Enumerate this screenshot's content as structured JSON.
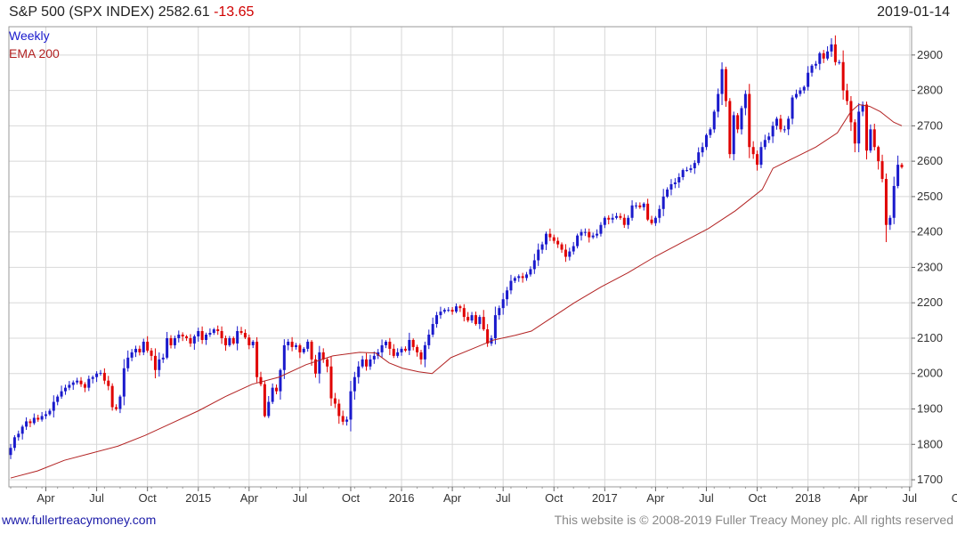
{
  "header": {
    "title": "S&P 500 (SPX INDEX)",
    "last": "2582.61",
    "change": "-13.65",
    "date": "2019-01-14"
  },
  "legend": [
    {
      "label": "Weekly",
      "color": "#1a1acc"
    },
    {
      "label": "EMA 200",
      "color": "#b22222"
    }
  ],
  "footer": {
    "link_text": "www.fullertreacymoney.com",
    "copyright": "This website is © 2008-2019 Fuller Treacy Money plc. All rights reserved"
  },
  "colors": {
    "up_bar": "#1a1acc",
    "down_bar": "#e00000",
    "ema_line": "#b22222",
    "grid": "#d8d8d8"
  },
  "chart_data": {
    "type": "line",
    "title": "S&P 500 (SPX INDEX)",
    "frequency": "Weekly",
    "ylim": [
      1680,
      2980
    ],
    "y_ticks": [
      1700,
      1800,
      1900,
      2000,
      2100,
      2200,
      2300,
      2400,
      2500,
      2600,
      2700,
      2800,
      2900
    ],
    "x_ticks": [
      "Apr",
      "Jul",
      "Oct",
      "2015",
      "Apr",
      "Jul",
      "Oct",
      "2016",
      "Apr",
      "Jul",
      "Oct",
      "2017",
      "Apr",
      "Jul",
      "Oct",
      "2018",
      "Apr",
      "Jul",
      "Oct"
    ],
    "grid": true,
    "legend_position": "top-left",
    "series": [
      {
        "name": "Weekly",
        "kind": "close",
        "values": [
          1790,
          1820,
          1830,
          1850,
          1865,
          1860,
          1875,
          1870,
          1880,
          1885,
          1895,
          1920,
          1935,
          1950,
          1960,
          1968,
          1975,
          1980,
          1970,
          1960,
          1985,
          1990,
          2000,
          2002,
          1980,
          1965,
          1905,
          1900,
          1935,
          2015,
          2045,
          2060,
          2070,
          2060,
          2090,
          2065,
          2050,
          2010,
          2040,
          2045,
          2100,
          2080,
          2100,
          2110,
          2105,
          2100,
          2085,
          2105,
          2120,
          2095,
          2110,
          2115,
          2125,
          2120,
          2100,
          2080,
          2100,
          2085,
          2120,
          2115,
          2102,
          2080,
          2090,
          1990,
          1970,
          1880,
          1920,
          1960,
          1950,
          2010,
          2080,
          2090,
          2075,
          2080,
          2060,
          2070,
          2090,
          2040,
          2000,
          2060,
          2040,
          2020,
          1930,
          1915,
          1880,
          1864,
          1870,
          1950,
          1990,
          2020,
          2040,
          2020,
          2040,
          2050,
          2060,
          2080,
          2090,
          2070,
          2050,
          2060,
          2070,
          2065,
          2095,
          2075,
          2060,
          2040,
          2080,
          2110,
          2140,
          2165,
          2175,
          2180,
          2180,
          2175,
          2190,
          2185,
          2160,
          2150,
          2165,
          2140,
          2160,
          2125,
          2085,
          2100,
          2165,
          2185,
          2210,
          2235,
          2262,
          2270,
          2275,
          2270,
          2280,
          2295,
          2320,
          2350,
          2365,
          2395,
          2385,
          2375,
          2365,
          2350,
          2330,
          2345,
          2360,
          2390,
          2400,
          2400,
          2385,
          2390,
          2395,
          2420,
          2440,
          2435,
          2440,
          2445,
          2440,
          2420,
          2440,
          2475,
          2475,
          2470,
          2480,
          2435,
          2425,
          2440,
          2465,
          2500,
          2520,
          2535,
          2540,
          2555,
          2575,
          2575,
          2580,
          2595,
          2625,
          2640,
          2674,
          2690,
          2740,
          2790,
          2860,
          2770,
          2620,
          2730,
          2690,
          2750,
          2790,
          2640,
          2620,
          2590,
          2640,
          2660,
          2670,
          2700,
          2720,
          2690,
          2690,
          2720,
          2780,
          2790,
          2800,
          2810,
          2850,
          2870,
          2875,
          2905,
          2890,
          2910,
          2930,
          2880,
          2880,
          2800,
          2770,
          2710,
          2650,
          2740,
          2760,
          2630,
          2690,
          2640,
          2600,
          2550,
          2420,
          2440,
          2530,
          2590,
          2583
        ]
      },
      {
        "name": "EMA 200",
        "kind": "line",
        "points": [
          [
            0,
            1705
          ],
          [
            20,
            1725
          ],
          [
            40,
            1755
          ],
          [
            60,
            1775
          ],
          [
            80,
            1795
          ],
          [
            100,
            1825
          ],
          [
            120,
            1860
          ],
          [
            140,
            1895
          ],
          [
            160,
            1935
          ],
          [
            180,
            1970
          ],
          [
            200,
            1990
          ],
          [
            220,
            2025
          ],
          [
            240,
            2050
          ],
          [
            260,
            2060
          ],
          [
            272,
            2058
          ],
          [
            282,
            2030
          ],
          [
            292,
            2015
          ],
          [
            304,
            2005
          ],
          [
            314,
            2000
          ],
          [
            328,
            2045
          ],
          [
            344,
            2070
          ],
          [
            360,
            2095
          ],
          [
            376,
            2108
          ],
          [
            388,
            2120
          ],
          [
            400,
            2150
          ],
          [
            420,
            2200
          ],
          [
            440,
            2245
          ],
          [
            460,
            2285
          ],
          [
            480,
            2330
          ],
          [
            500,
            2370
          ],
          [
            520,
            2410
          ],
          [
            540,
            2460
          ],
          [
            560,
            2520
          ],
          [
            568,
            2580
          ],
          [
            584,
            2610
          ],
          [
            600,
            2640
          ],
          [
            616,
            2680
          ],
          [
            626,
            2740
          ],
          [
            632,
            2760
          ],
          [
            640,
            2755
          ],
          [
            648,
            2740
          ],
          [
            658,
            2710
          ],
          [
            664,
            2700
          ]
        ]
      }
    ]
  }
}
